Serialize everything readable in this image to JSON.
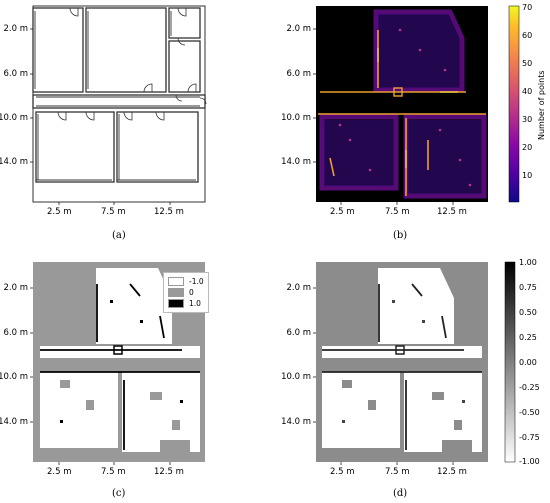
{
  "panels": {
    "a": {
      "caption": "(a)",
      "y_ticks": [
        "2.0 m",
        "6.0 m",
        "10.0 m",
        "14.0 m"
      ],
      "x_ticks": [
        "2.5 m",
        "7.5 m",
        "12.5 m"
      ]
    },
    "b": {
      "caption": "(b)",
      "y_ticks": [
        "2.0 m",
        "6.0 m",
        "10.0 m",
        "14.0 m"
      ],
      "x_ticks": [
        "2.5 m",
        "7.5 m",
        "12.5 m"
      ],
      "colorbar": {
        "title": "Number of points",
        "ticks": [
          "70",
          "60",
          "50",
          "40",
          "30",
          "20",
          "10"
        ],
        "colors": [
          "#0d0887",
          "#5302a3",
          "#8b0aa5",
          "#b83289",
          "#db5c68",
          "#f48849",
          "#febd2a",
          "#f0f921"
        ]
      }
    },
    "c": {
      "caption": "(c)",
      "y_ticks": [
        "2.0 m",
        "6.0 m",
        "10.0 m",
        "14.0 m"
      ],
      "x_ticks": [
        "2.5 m",
        "7.5 m",
        "12.5 m"
      ],
      "legend": [
        {
          "label": "-1.0",
          "color": "#ffffff"
        },
        {
          "label": "0",
          "color": "#999999"
        },
        {
          "label": "1.0",
          "color": "#000000"
        }
      ]
    },
    "d": {
      "caption": "(d)",
      "y_ticks": [
        "2.0 m",
        "6.0 m",
        "10.0 m",
        "14.0 m"
      ],
      "x_ticks": [
        "2.5 m",
        "7.5 m",
        "12.5 m"
      ],
      "colorbar": {
        "ticks": [
          "1.00",
          "0.75",
          "0.50",
          "0.25",
          "0.00",
          "-0.25",
          "-0.50",
          "-0.75",
          "-1.00"
        ]
      }
    }
  }
}
